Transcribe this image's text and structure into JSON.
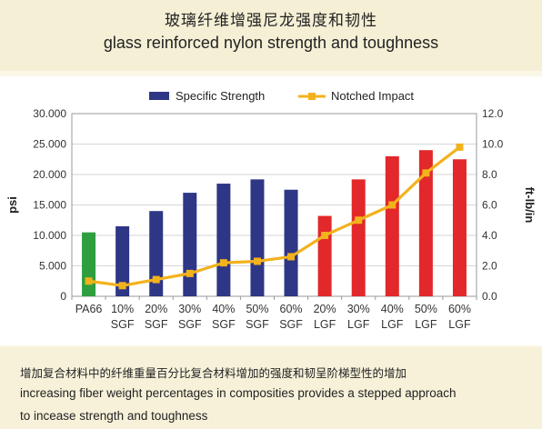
{
  "header": {
    "title_zh": "玻璃纤维增强尼龙强度和韧性",
    "title_en": "glass reinforced nylon strength and toughness"
  },
  "footer": {
    "line_zh": "增加复合材料中的纤维重量百分比复合材料增加的强度和韧呈阶梯型性的增加",
    "line_en_1": "increasing fiber weight percentages in composities provides a stepped approach",
    "line_en_2": "to incease strength and toughness"
  },
  "colors": {
    "pa66": "#2e9e3f",
    "sgf": "#2e3686",
    "lgf": "#e2282a",
    "impact_line": "#f2b21c"
  },
  "chart_data": {
    "type": "bar",
    "categories": [
      [
        "PA66",
        ""
      ],
      [
        "10%",
        "SGF"
      ],
      [
        "20%",
        "SGF"
      ],
      [
        "30%",
        "SGF"
      ],
      [
        "40%",
        "SGF"
      ],
      [
        "50%",
        "SGF"
      ],
      [
        "60%",
        "SGF"
      ],
      [
        "20%",
        "LGF"
      ],
      [
        "30%",
        "LGF"
      ],
      [
        "40%",
        "LGF"
      ],
      [
        "50%",
        "LGF"
      ],
      [
        "60%",
        "LGF"
      ]
    ],
    "series": [
      {
        "name": "Specific Strength",
        "type": "bar",
        "axis": "left",
        "values": [
          10500,
          11500,
          14000,
          17000,
          18500,
          19200,
          17500,
          13200,
          19200,
          23000,
          24000,
          22500
        ],
        "bar_colors": [
          "pa66",
          "sgf",
          "sgf",
          "sgf",
          "sgf",
          "sgf",
          "sgf",
          "lgf",
          "lgf",
          "lgf",
          "lgf",
          "lgf"
        ]
      },
      {
        "name": "Notched Impact",
        "type": "line",
        "axis": "right",
        "values": [
          1.0,
          0.7,
          1.1,
          1.5,
          2.2,
          2.3,
          2.6,
          4.0,
          5.0,
          6.0,
          8.1,
          9.8
        ]
      }
    ],
    "ylabel": "psi",
    "y2label": "ft-lb/in",
    "ylim": [
      0,
      30000
    ],
    "y2lim": [
      0,
      12
    ],
    "yticks": [
      "0",
      "5.000",
      "10.000",
      "15.000",
      "20.000",
      "25.000",
      "30.000"
    ],
    "y2ticks": [
      "0.0",
      "2.0",
      "4.0",
      "6.0",
      "8.0",
      "10.0",
      "12.0"
    ],
    "grid": true,
    "legend": "top-center"
  }
}
